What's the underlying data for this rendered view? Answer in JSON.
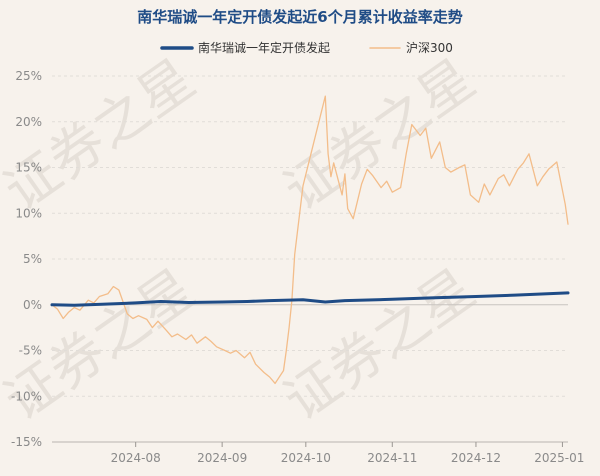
{
  "chart_data": {
    "type": "line",
    "title": "南华瑞诚一年定开债发起近6个月累计收益率走势",
    "watermark": "证券之星",
    "xlabel": "",
    "ylabel": "",
    "ylim": [
      -15,
      25
    ],
    "yticks": [
      -15,
      -10,
      -5,
      0,
      5,
      10,
      15,
      20,
      25
    ],
    "ytick_labels": [
      "-15%",
      "-10%",
      "-5%",
      "0%",
      "5%",
      "10%",
      "15%",
      "20%",
      "25%"
    ],
    "xlim": [
      "2024-07-02",
      "2025-01-03"
    ],
    "xticks": [
      "2024-08-01",
      "2024-09-01",
      "2024-10-01",
      "2024-11-01",
      "2024-12-01",
      "2025-01-01"
    ],
    "xtick_labels": [
      "2024-08",
      "2024-09",
      "2024-10",
      "2024-11",
      "2024-12",
      "2025-01"
    ],
    "grid": "horizontal",
    "legend": "top",
    "series": [
      {
        "name": "南华瑞诚一年定开债发起",
        "color": "#1f4c86",
        "points": [
          [
            "2024-07-02",
            0.0
          ],
          [
            "2024-07-10",
            -0.05
          ],
          [
            "2024-07-20",
            0.05
          ],
          [
            "2024-08-01",
            0.2
          ],
          [
            "2024-08-10",
            0.35
          ],
          [
            "2024-08-20",
            0.25
          ],
          [
            "2024-09-01",
            0.3
          ],
          [
            "2024-09-10",
            0.35
          ],
          [
            "2024-09-18",
            0.45
          ],
          [
            "2024-09-30",
            0.55
          ],
          [
            "2024-10-08",
            0.3
          ],
          [
            "2024-10-15",
            0.45
          ],
          [
            "2024-11-01",
            0.6
          ],
          [
            "2024-11-15",
            0.75
          ],
          [
            "2024-12-01",
            0.9
          ],
          [
            "2024-12-15",
            1.05
          ],
          [
            "2025-01-03",
            1.3
          ]
        ]
      },
      {
        "name": "沪深300",
        "color": "#f3bd8a",
        "points": [
          [
            "2024-07-02",
            0.0
          ],
          [
            "2024-07-04",
            -0.5
          ],
          [
            "2024-07-06",
            -1.5
          ],
          [
            "2024-07-08",
            -0.8
          ],
          [
            "2024-07-10",
            -0.3
          ],
          [
            "2024-07-12",
            -0.6
          ],
          [
            "2024-07-15",
            0.5
          ],
          [
            "2024-07-17",
            0.2
          ],
          [
            "2024-07-19",
            0.9
          ],
          [
            "2024-07-22",
            1.2
          ],
          [
            "2024-07-24",
            2.0
          ],
          [
            "2024-07-26",
            1.6
          ],
          [
            "2024-07-29",
            -1.0
          ],
          [
            "2024-07-31",
            -1.5
          ],
          [
            "2024-08-02",
            -1.2
          ],
          [
            "2024-08-05",
            -1.6
          ],
          [
            "2024-08-07",
            -2.5
          ],
          [
            "2024-08-09",
            -1.8
          ],
          [
            "2024-08-12",
            -2.8
          ],
          [
            "2024-08-14",
            -3.5
          ],
          [
            "2024-08-16",
            -3.2
          ],
          [
            "2024-08-19",
            -3.8
          ],
          [
            "2024-08-21",
            -3.3
          ],
          [
            "2024-08-23",
            -4.2
          ],
          [
            "2024-08-26",
            -3.5
          ],
          [
            "2024-08-28",
            -4.0
          ],
          [
            "2024-08-30",
            -4.6
          ],
          [
            "2024-09-02",
            -5.0
          ],
          [
            "2024-09-04",
            -5.3
          ],
          [
            "2024-09-06",
            -5.0
          ],
          [
            "2024-09-09",
            -5.8
          ],
          [
            "2024-09-11",
            -5.2
          ],
          [
            "2024-09-13",
            -6.5
          ],
          [
            "2024-09-16",
            -7.4
          ],
          [
            "2024-09-18",
            -7.9
          ],
          [
            "2024-09-20",
            -8.6
          ],
          [
            "2024-09-23",
            -7.2
          ],
          [
            "2024-09-24",
            -5.0
          ],
          [
            "2024-09-25",
            -2.5
          ],
          [
            "2024-09-26",
            0.5
          ],
          [
            "2024-09-27",
            5.5
          ],
          [
            "2024-09-30",
            13.0
          ],
          [
            "2024-10-08",
            22.8
          ],
          [
            "2024-10-09",
            16.5
          ],
          [
            "2024-10-10",
            14.0
          ],
          [
            "2024-10-11",
            15.5
          ],
          [
            "2024-10-14",
            12.0
          ],
          [
            "2024-10-15",
            14.3
          ],
          [
            "2024-10-16",
            10.5
          ],
          [
            "2024-10-18",
            9.4
          ],
          [
            "2024-10-21",
            13.2
          ],
          [
            "2024-10-23",
            14.8
          ],
          [
            "2024-10-25",
            14.1
          ],
          [
            "2024-10-28",
            12.8
          ],
          [
            "2024-10-30",
            13.5
          ],
          [
            "2024-11-01",
            12.3
          ],
          [
            "2024-11-04",
            12.8
          ],
          [
            "2024-11-06",
            16.5
          ],
          [
            "2024-11-08",
            19.7
          ],
          [
            "2024-11-11",
            18.5
          ],
          [
            "2024-11-13",
            19.3
          ],
          [
            "2024-11-15",
            16.0
          ],
          [
            "2024-11-18",
            17.8
          ],
          [
            "2024-11-20",
            15.0
          ],
          [
            "2024-11-22",
            14.5
          ],
          [
            "2024-11-25",
            15.0
          ],
          [
            "2024-11-27",
            15.3
          ],
          [
            "2024-11-29",
            12.0
          ],
          [
            "2024-12-02",
            11.2
          ],
          [
            "2024-12-04",
            13.2
          ],
          [
            "2024-12-06",
            12.0
          ],
          [
            "2024-12-09",
            13.8
          ],
          [
            "2024-12-11",
            14.2
          ],
          [
            "2024-12-13",
            13.0
          ],
          [
            "2024-12-16",
            14.8
          ],
          [
            "2024-12-18",
            15.5
          ],
          [
            "2024-12-20",
            16.5
          ],
          [
            "2024-12-23",
            13.0
          ],
          [
            "2024-12-25",
            14.0
          ],
          [
            "2024-12-27",
            14.8
          ],
          [
            "2024-12-30",
            15.6
          ],
          [
            "2025-01-02",
            11.0
          ],
          [
            "2025-01-03",
            8.8
          ]
        ]
      }
    ]
  }
}
